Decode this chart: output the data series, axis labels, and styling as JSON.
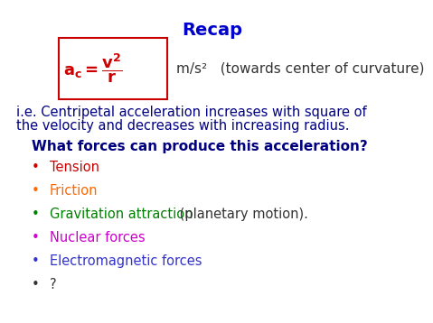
{
  "title": "Recap",
  "title_color": "#0000CC",
  "title_fontsize": 14,
  "background_color": "#ffffff",
  "formula_box_color": "#CC0000",
  "ie_text1": "i.e. Centripetal acceleration increases with square of",
  "ie_text2": "the velocity and decreases with increasing radius.",
  "ie_color": "#000080",
  "ie_fontsize": 10.5,
  "question_text": "What forces can produce this acceleration?",
  "question_color": "#000080",
  "question_fontsize": 11,
  "bullet_items": [
    {
      "text": "Tension",
      "color": "#CC0000",
      "bullet_color": "#CC0000"
    },
    {
      "text": "Friction",
      "color": "#FF6600",
      "bullet_color": "#FF6600"
    },
    {
      "text": "Gravitation attraction",
      "suffix": " (planetary motion).",
      "suffix_color": "#333333",
      "color": "#008000",
      "bullet_color": "#008000"
    },
    {
      "text": "Nuclear forces",
      "color": "#CC00CC",
      "bullet_color": "#CC00CC"
    },
    {
      "text": "Electromagnetic forces",
      "color": "#3333CC",
      "bullet_color": "#3333CC"
    },
    {
      "text": "?",
      "color": "#333333",
      "bullet_color": "#333333"
    }
  ],
  "bullet_fontsize": 10.5,
  "units_text": "m/s²   (towards center of curvature)",
  "units_color": "#333333",
  "units_fontsize": 11
}
